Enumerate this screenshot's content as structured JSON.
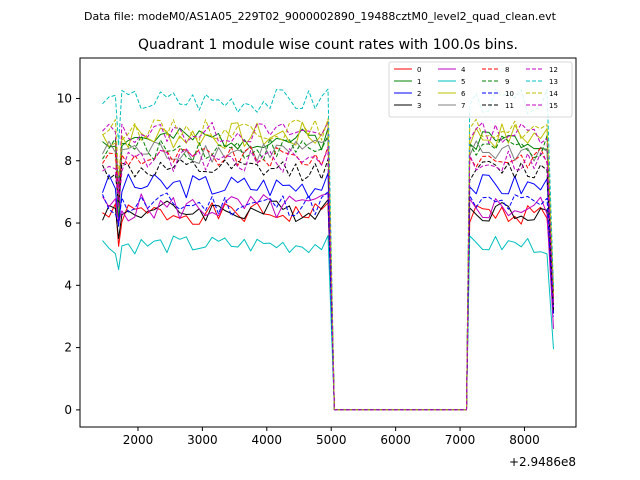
{
  "header_text": "Data file: modeM0/AS1A05_229T02_9000002890_19488cztM0_level2_quad_clean.evt",
  "chart_data": {
    "type": "line",
    "title": "Quadrant 1 module wise count rates with 100.0s bins.",
    "xlabel": "",
    "ylabel": "",
    "xlim": [
      1100,
      8800
    ],
    "ylim": [
      -0.55,
      11.3
    ],
    "xticks": [
      2000,
      3000,
      4000,
      5000,
      6000,
      7000,
      8000
    ],
    "yticks": [
      0,
      2,
      4,
      6,
      8,
      10
    ],
    "offset_text": "+2.9486e8",
    "legend_position": "top-right",
    "seg1_x": [
      1450,
      1550,
      1650,
      1700,
      1750,
      1850,
      1950,
      2050,
      2150,
      2250,
      2350,
      2450,
      2550,
      2650,
      2750,
      2850,
      2950,
      3050,
      3150,
      3250,
      3350,
      3450,
      3550,
      3650,
      3750,
      3850,
      3950,
      4050,
      4150,
      4250,
      4350,
      4450,
      4550,
      4650,
      4750,
      4850,
      4950
    ],
    "seg2_x": [
      7150,
      7250,
      7350,
      7450,
      7550,
      7650,
      7750,
      7850,
      7950,
      8050,
      8150,
      8250,
      8350
    ],
    "gap_x": [
      5050,
      5150,
      7100
    ],
    "end_x": 8450,
    "series": [
      {
        "name": "0",
        "color": "#ff0000",
        "dash": false,
        "level": 6.3,
        "amp": 0.35,
        "seed": 1,
        "dip": 5.25,
        "end": 3.7
      },
      {
        "name": "1",
        "color": "#008000",
        "dash": false,
        "level": 8.7,
        "amp": 0.35,
        "seed": 2,
        "dip": 5.9,
        "end": 3.9
      },
      {
        "name": "2",
        "color": "#0000ff",
        "dash": false,
        "level": 7.2,
        "amp": 0.4,
        "seed": 3,
        "dip": 5.9,
        "end": 3.3
      },
      {
        "name": "3",
        "color": "#000000",
        "dash": false,
        "level": 6.4,
        "amp": 0.35,
        "seed": 4,
        "dip": 5.5,
        "end": 3.1
      },
      {
        "name": "4",
        "color": "#c000c0",
        "dash": false,
        "level": 6.5,
        "amp": 0.45,
        "seed": 5,
        "dip": 6.0,
        "end": 2.6
      },
      {
        "name": "5",
        "color": "#00bfbf",
        "dash": false,
        "level": 5.3,
        "amp": 0.3,
        "seed": 6,
        "dip": 4.5,
        "end": 1.95
      },
      {
        "name": "6",
        "color": "#bfbf00",
        "dash": false,
        "level": 8.8,
        "amp": 0.45,
        "seed": 7,
        "dip": 6.5,
        "end": 3.6
      },
      {
        "name": "7",
        "color": "#808080",
        "dash": false,
        "level": 8.3,
        "amp": 0.4,
        "seed": 8,
        "dip": 6.8,
        "end": 3.4
      },
      {
        "name": "8",
        "color": "#ff0000",
        "dash": true,
        "level": 8.1,
        "amp": 0.35,
        "seed": 9,
        "dip": 6.6,
        "end": 3.5
      },
      {
        "name": "9",
        "color": "#008000",
        "dash": true,
        "level": 8.4,
        "amp": 0.4,
        "seed": 10,
        "dip": 7.2,
        "end": 3.8
      },
      {
        "name": "10",
        "color": "#0000ff",
        "dash": true,
        "level": 6.6,
        "amp": 0.4,
        "seed": 11,
        "dip": 6.0,
        "end": 3.0
      },
      {
        "name": "11",
        "color": "#000000",
        "dash": true,
        "level": 7.7,
        "amp": 0.35,
        "seed": 12,
        "dip": 6.6,
        "end": 3.2
      },
      {
        "name": "12",
        "color": "#c000c0",
        "dash": true,
        "level": 8.9,
        "amp": 0.35,
        "seed": 13,
        "dip": 7.0,
        "end": 3.5
      },
      {
        "name": "13",
        "color": "#00bfbf",
        "dash": true,
        "level": 9.9,
        "amp": 0.4,
        "seed": 14,
        "dip": 8.5,
        "end": 3.9
      },
      {
        "name": "14",
        "color": "#bfbf00",
        "dash": true,
        "level": 9.0,
        "amp": 0.35,
        "seed": 15,
        "dip": 7.5,
        "end": 3.7
      },
      {
        "name": "15",
        "color": "#c000c0",
        "dash": true,
        "level": 8.0,
        "amp": 0.4,
        "seed": 16,
        "dip": 6.5,
        "end": 3.3
      }
    ]
  }
}
